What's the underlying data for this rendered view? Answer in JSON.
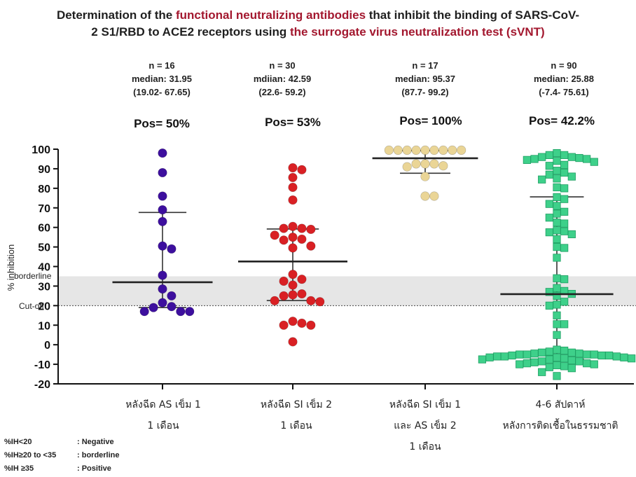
{
  "title": {
    "part1": "Determination of the ",
    "highlight1": "functional neutralizing antibodies",
    "part2": " that inhibit the binding of SARS-CoV-",
    "part3": "2 S1/RBD to ACE2 receptors using ",
    "highlight2": "the surrogate virus neutralization test (sVNT)"
  },
  "colors": {
    "title_highlight": "#a3182f",
    "band": "#e6e6e6"
  },
  "groups": [
    {
      "n": "n = 16",
      "median": "median: 31.95",
      "range": "(19.02- 67.65)",
      "pos": "Pos= 50%",
      "label1": "หลังฉีด AS เข็ม 1",
      "label2": "1 เดือน",
      "label3": ""
    },
    {
      "n": "n = 30",
      "median": "mdiian: 42.59",
      "range": "(22.6- 59.2)",
      "pos": "Pos= 53%",
      "label1": "หลังฉีด SI เข็ม 2",
      "label2": "1 เดือน",
      "label3": ""
    },
    {
      "n": "n = 17",
      "median": "median: 95.37",
      "range": "(87.7- 99.2)",
      "pos": "Pos= 100%",
      "label1": "หลังฉีด SI เข็ม 1",
      "label2": "และ AS เข็ม  2",
      "label3": "1 เดือน"
    },
    {
      "n": "n = 90",
      "median": "median: 25.88",
      "range": "(-7.4- 75.61)",
      "pos": "Pos= 42.2%",
      "label1": "4-6 สัปดาห์",
      "label2": "หลังการติดเชื้อในธรรมชาติ",
      "label3": ""
    }
  ],
  "legend": [
    {
      "cond": "%IH<20",
      "meaning": ": Negative"
    },
    {
      "cond": "%IH≥20 to <35",
      "meaning": ": borderline"
    },
    {
      "cond": "%IH ≥35",
      "meaning": ": Positive"
    }
  ],
  "chart_data": {
    "type": "scatter",
    "ylabel": "% inhibition",
    "ylim": [
      -20,
      100
    ],
    "yticks": [
      -20,
      -10,
      0,
      10,
      20,
      30,
      40,
      50,
      60,
      70,
      80,
      90,
      100
    ],
    "annotations": {
      "borderline": "borderline",
      "cutoff": "Cut-off"
    },
    "cutoff": 20,
    "borderline_band": [
      20,
      35
    ],
    "series": [
      {
        "color": "#3d0f9e",
        "marker": "circle",
        "median": 31.95,
        "q1": 19.02,
        "q3": 67.65,
        "points": [
          98,
          88,
          76,
          69,
          63,
          50.5,
          49,
          35.5,
          28.5,
          25,
          21.5,
          19.5,
          19,
          17,
          17,
          17
        ]
      },
      {
        "color": "#d92024",
        "marker": "circle",
        "median": 42.59,
        "q1": 22.6,
        "q3": 59.2,
        "points": [
          90.5,
          89.5,
          85.5,
          80.5,
          74,
          60.5,
          59.5,
          59.5,
          59,
          56,
          55,
          54,
          53.5,
          50.5,
          49.5,
          36,
          33.5,
          32.5,
          30.5,
          26,
          25.5,
          25,
          22.5,
          22,
          22.5,
          12,
          11,
          10,
          10,
          1.5
        ]
      },
      {
        "color": "#ead596",
        "marker": "circle",
        "median": 95.37,
        "q1": 87.7,
        "q3": 99.2,
        "points": [
          99.5,
          99.5,
          99.5,
          99.5,
          99.5,
          99.5,
          99.5,
          99.5,
          99.5,
          92.5,
          92.5,
          92.5,
          91.5,
          91,
          86,
          76,
          76
        ]
      },
      {
        "color": "#3ed08a",
        "marker": "square",
        "median": 25.88,
        "q1": -7.4,
        "q3": 75.61,
        "points": [
          98,
          97,
          97,
          96,
          96,
          95.5,
          95,
          95,
          94.5,
          94,
          93.5,
          92,
          91.5,
          89,
          88,
          87,
          86,
          85,
          84.5,
          80.5,
          80,
          75.5,
          74.5,
          72,
          71,
          68,
          67,
          65,
          62.5,
          62,
          58.5,
          58,
          57.5,
          56.5,
          54,
          50,
          49.5,
          44.5,
          34,
          33.5,
          29,
          27.5,
          27,
          26,
          25,
          22,
          20.5,
          20,
          15,
          10.5,
          10.5,
          5,
          -2.5,
          -3,
          -3.5,
          -4,
          -4,
          -4.5,
          -4.5,
          -5,
          -5,
          -5,
          -5,
          -5.5,
          -5.5,
          -5.5,
          -6,
          -6,
          -6,
          -6.5,
          -6.5,
          -6.5,
          -7,
          -7,
          -7.5,
          -7.5,
          -8,
          -8.5,
          -8.5,
          -9,
          -9.5,
          -9.5,
          -10,
          -10,
          -10.5,
          -11,
          -11.5,
          -12,
          -14,
          -16
        ]
      }
    ]
  }
}
